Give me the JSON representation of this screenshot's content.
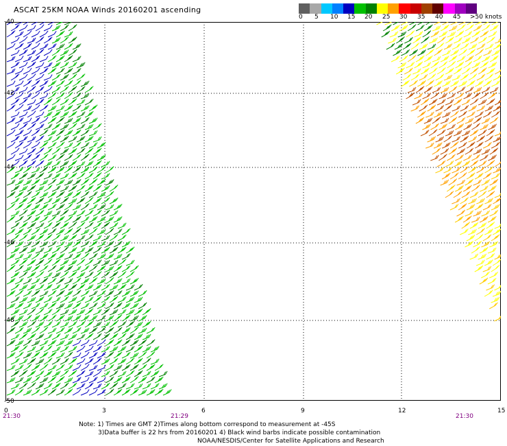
{
  "header": {
    "title": "ASCAT 25KM NOAA Winds 20160201 ascending"
  },
  "color_scale": {
    "labels": [
      "0",
      "5",
      "10",
      "15",
      "20",
      "25",
      "30",
      "35",
      "40",
      "45",
      ">50 knots"
    ],
    "colors": [
      "#606060",
      "#a8a8a8",
      "#00c8ff",
      "#0080ff",
      "#0000c0",
      "#00c000",
      "#008000",
      "#ffff00",
      "#ffa000",
      "#ff0000",
      "#c80000",
      "#a04000",
      "#600000",
      "#ff00ff",
      "#a000c0",
      "#600080"
    ]
  },
  "axes": {
    "y_labels": [
      "-40",
      "-42",
      "-44",
      "-46",
      "-48",
      "-50"
    ],
    "x_labels": [
      "0",
      "3",
      "6",
      "9",
      "12",
      "15"
    ]
  },
  "times": {
    "left": "21:30",
    "middle": "21:29",
    "right": "21:30"
  },
  "notes": {
    "line1": "Note: 1) Times are GMT 2)Times along bottom correspond to measurement at -45S",
    "line2": "3)Data buffer is 22 hrs from 20160201 4) Black wind barbs indicate possible contamination",
    "line3": "NOAA/NESDIS/Center for Satellite Applications and Research"
  },
  "map_data": {
    "lon_range": [
      0,
      15
    ],
    "lat_range": [
      -40,
      -50
    ],
    "swaths": [
      {
        "name": "west",
        "dominant_speed_kt": 15,
        "colors": [
          "#00c000",
          "#008000",
          "#0000c0"
        ]
      },
      {
        "name": "east",
        "dominant_speed_kt": 30,
        "colors": [
          "#ffff00",
          "#ffa000",
          "#c05000",
          "#008000"
        ]
      }
    ]
  }
}
